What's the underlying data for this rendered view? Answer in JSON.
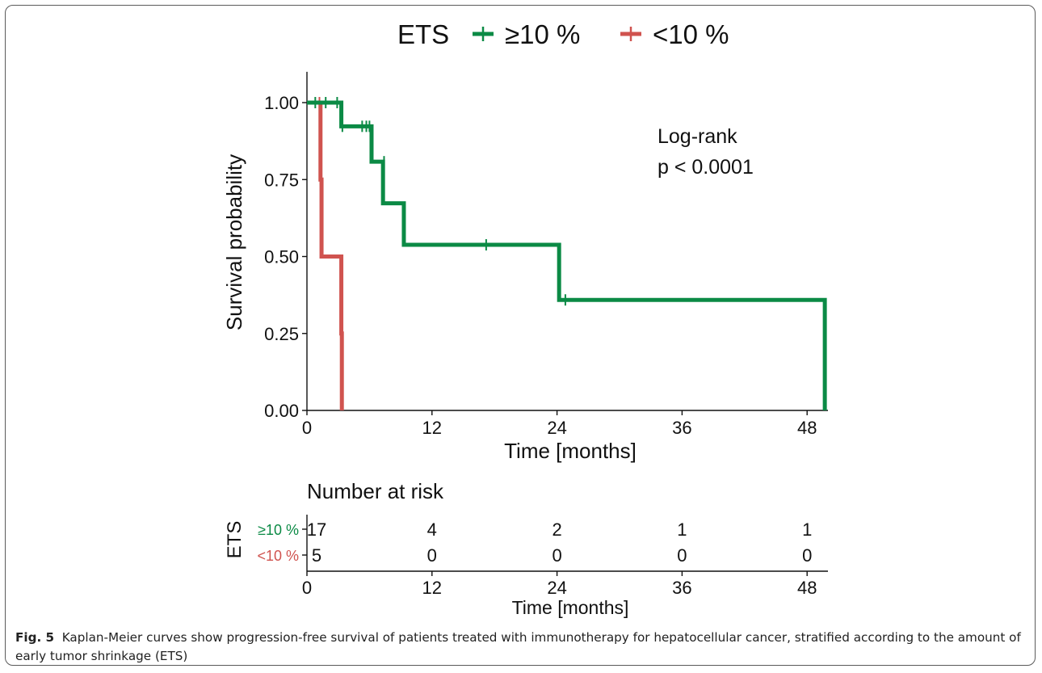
{
  "legend": {
    "title": "ETS",
    "entries": [
      {
        "label": "≥10 %",
        "color": "#0b8a45"
      },
      {
        "label": "<10 %",
        "color": "#d0534f"
      }
    ]
  },
  "annotation": {
    "line1": "Log-rank",
    "line2": "p < 0.0001"
  },
  "risk_table": {
    "title": "Number at risk",
    "strata_title": "ETS",
    "xlabel": "Time [months]",
    "rows": [
      {
        "label": "≥10 %",
        "color": "#0b8a45",
        "values": [
          "17",
          "4",
          "2",
          "1",
          "1"
        ]
      },
      {
        "label": "<10 %",
        "color": "#d0534f",
        "values": [
          "5",
          "0",
          "0",
          "0",
          "0"
        ]
      }
    ]
  },
  "chart_data": {
    "type": "line",
    "xlabel": "Time [months]",
    "ylabel": "Survival probability",
    "xlim": [
      0,
      50
    ],
    "ylim": [
      0,
      1.1
    ],
    "xticks": [
      0,
      12,
      24,
      36,
      48
    ],
    "xtick_labels": [
      "0",
      "12",
      "24",
      "36",
      "48"
    ],
    "yticks": [
      0,
      0.25,
      0.5,
      0.75,
      1.0
    ],
    "ytick_labels": [
      "0.00",
      "0.25",
      "0.50",
      "0.75",
      "1.00"
    ],
    "grid": false,
    "legend_position": "top",
    "series": [
      {
        "name": "≥10 %",
        "color": "#0b8a45",
        "steps": [
          [
            0,
            1.0
          ],
          [
            3.3,
            0.923
          ],
          [
            6.2,
            0.808
          ],
          [
            7.3,
            0.673
          ],
          [
            9.3,
            0.538
          ],
          [
            24.2,
            0.359
          ],
          [
            49.7,
            0.0
          ]
        ],
        "end_x": 49.7,
        "censor": [
          [
            0.8,
            1.0
          ],
          [
            1.8,
            1.0
          ],
          [
            2.9,
            1.0
          ],
          [
            3.4,
            0.923
          ],
          [
            5.3,
            0.923
          ],
          [
            5.7,
            0.923
          ],
          [
            6.0,
            0.923
          ],
          [
            7.4,
            0.808
          ],
          [
            17.2,
            0.538
          ],
          [
            24.8,
            0.359
          ]
        ]
      },
      {
        "name": "<10 %",
        "color": "#d0534f",
        "steps": [
          [
            0,
            1.0
          ],
          [
            1.3,
            0.75
          ],
          [
            1.4,
            0.5
          ],
          [
            3.3,
            0.25
          ],
          [
            3.35,
            0.0
          ]
        ],
        "end_x": 3.35,
        "censor": [
          [
            1.2,
            1.0
          ],
          [
            1.3,
            0.75
          ],
          [
            3.3,
            0.25
          ]
        ]
      }
    ]
  },
  "caption": {
    "label": "Fig. 5",
    "text": "Kaplan-Meier curves show progression-free survival of patients treated with immunotherapy for hepatocellular cancer, stratified according to the amount of early tumor shrinkage (ETS)"
  }
}
